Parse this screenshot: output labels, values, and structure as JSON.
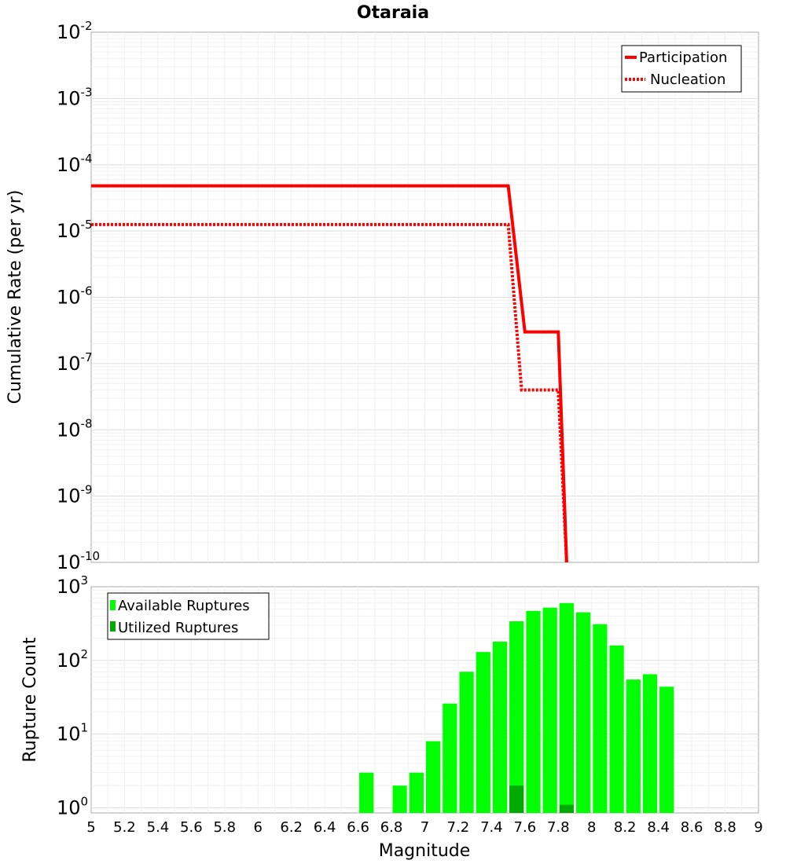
{
  "title": "Otaraia",
  "chart_data": [
    {
      "type": "line",
      "ylabel": "Cumulative Rate (per yr)",
      "xlim": [
        5,
        9
      ],
      "ylim_exponents": [
        -10,
        -2
      ],
      "yscale": "log",
      "legend_position": "top-right",
      "grid": true,
      "series": [
        {
          "name": "Participation",
          "style": "solid",
          "color": "#ff0000",
          "points": [
            [
              5.0,
              4.8e-05
            ],
            [
              7.5,
              4.8e-05
            ],
            [
              7.6,
              3e-07
            ],
            [
              7.8,
              3e-07
            ],
            [
              7.85,
              1e-10
            ]
          ]
        },
        {
          "name": "Nucleation",
          "style": "dotted",
          "color": "#ff0000",
          "points": [
            [
              5.0,
              1.25e-05
            ],
            [
              7.5,
              1.25e-05
            ],
            [
              7.58,
              4e-08
            ],
            [
              7.8,
              4e-08
            ],
            [
              7.85,
              1e-10
            ]
          ]
        }
      ],
      "y_tick_base": "10",
      "y_tick_exponents": [
        "-2",
        "-3",
        "-4",
        "-5",
        "-6",
        "-7",
        "-8",
        "-9",
        "-10"
      ]
    },
    {
      "type": "bar",
      "xlabel": "Magnitude",
      "ylabel": "Rupture Count",
      "xlim": [
        5,
        9
      ],
      "ylim_exponents": [
        -0.07,
        3
      ],
      "yscale": "log",
      "legend_position": "top-left",
      "grid": true,
      "bin_width": 0.1,
      "series": [
        {
          "name": "Available Ruptures",
          "color": "#00ff00",
          "centers": [
            6.65,
            6.85,
            6.95,
            7.05,
            7.15,
            7.25,
            7.35,
            7.45,
            7.55,
            7.65,
            7.75,
            7.85,
            7.95,
            8.05,
            8.15,
            8.25,
            8.35,
            8.45
          ],
          "values": [
            3,
            2,
            3,
            8,
            26,
            70,
            130,
            180,
            340,
            470,
            520,
            600,
            450,
            310,
            160,
            55,
            65,
            44
          ]
        },
        {
          "name": "Utilized Ruptures",
          "color": "#00aa00",
          "centers": [
            7.55,
            7.85
          ],
          "values": [
            2,
            1.1
          ]
        }
      ],
      "x_ticks": [
        "5",
        "5.2",
        "5.4",
        "5.6",
        "5.8",
        "6",
        "6.2",
        "6.4",
        "6.6",
        "6.8",
        "7",
        "7.2",
        "7.4",
        "7.6",
        "7.8",
        "8",
        "8.2",
        "8.4",
        "8.6",
        "8.8",
        "9"
      ],
      "y_tick_base": "10",
      "y_tick_exponents": [
        "3",
        "2",
        "1",
        "0"
      ]
    }
  ]
}
